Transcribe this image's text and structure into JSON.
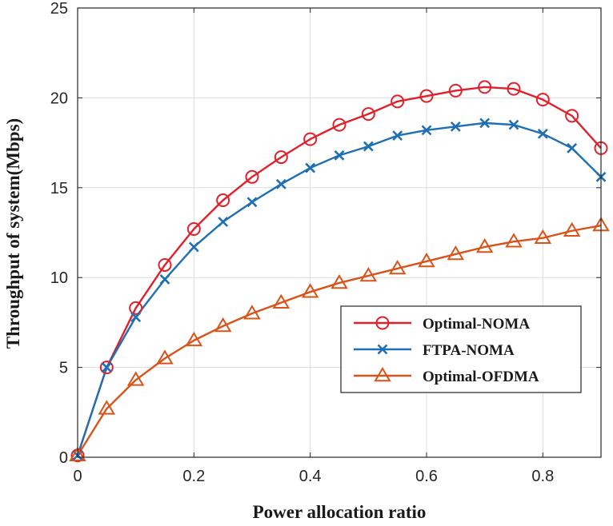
{
  "chart_data": {
    "type": "line",
    "xlabel": "Power allocation ratio",
    "ylabel": "Throughput of system(Mbps)",
    "xlim": [
      0,
      0.9
    ],
    "ylim": [
      0,
      25
    ],
    "xticks": [
      "0",
      "0.2",
      "0.4",
      "0.6",
      "0.8"
    ],
    "yticks": [
      "0",
      "5",
      "10",
      "15",
      "20",
      "25"
    ],
    "grid": true,
    "legend_position": "lower-right",
    "x": [
      0,
      0.05,
      0.1,
      0.15,
      0.2,
      0.25,
      0.3,
      0.35,
      0.4,
      0.45,
      0.5,
      0.55,
      0.6,
      0.65,
      0.7,
      0.75,
      0.8,
      0.85,
      0.9
    ],
    "series": [
      {
        "name": "Optimal-NOMA",
        "color": "#e0202a",
        "marker": "circle",
        "values": [
          0.1,
          5.0,
          8.3,
          10.7,
          12.7,
          14.3,
          15.6,
          16.7,
          17.7,
          18.5,
          19.1,
          19.8,
          20.1,
          20.4,
          20.6,
          20.5,
          19.9,
          19.0,
          17.2
        ]
      },
      {
        "name": "FTPA-NOMA",
        "color": "#1f6fb4",
        "marker": "x",
        "values": [
          0.1,
          5.0,
          7.8,
          9.9,
          11.7,
          13.1,
          14.2,
          15.2,
          16.1,
          16.8,
          17.3,
          17.9,
          18.2,
          18.4,
          18.6,
          18.5,
          18.0,
          17.2,
          15.6
        ]
      },
      {
        "name": "Optimal-OFDMA",
        "color": "#d95319",
        "marker": "triangle",
        "values": [
          0.1,
          2.7,
          4.3,
          5.5,
          6.5,
          7.3,
          8.0,
          8.6,
          9.2,
          9.7,
          10.1,
          10.5,
          10.9,
          11.3,
          11.7,
          12.0,
          12.2,
          12.6,
          12.9
        ]
      }
    ]
  }
}
